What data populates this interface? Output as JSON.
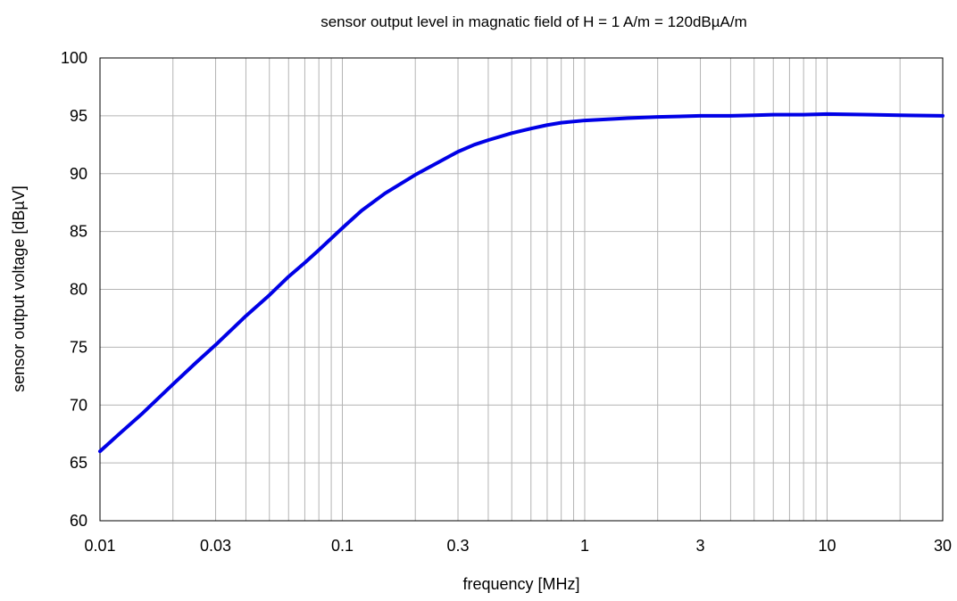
{
  "chart_data": {
    "type": "line",
    "title": "sensor output level in magnatic field of H = 1 A/m = 120dBµA/m",
    "xlabel": "frequency [MHz]",
    "ylabel": "sensor output voltage [dBµV]",
    "xscale": "log",
    "xlim": [
      0.01,
      30
    ],
    "ylim": [
      60,
      100
    ],
    "grid": true,
    "xticks": [
      {
        "value": 0.01,
        "label": "0.01"
      },
      {
        "value": 0.03,
        "label": "0.03"
      },
      {
        "value": 0.1,
        "label": "0.1"
      },
      {
        "value": 0.3,
        "label": "0.3"
      },
      {
        "value": 1,
        "label": "1"
      },
      {
        "value": 3,
        "label": "3"
      },
      {
        "value": 10,
        "label": "10"
      },
      {
        "value": 30,
        "label": "30"
      }
    ],
    "yticks": [
      {
        "value": 60,
        "label": "60"
      },
      {
        "value": 65,
        "label": "65"
      },
      {
        "value": 70,
        "label": "70"
      },
      {
        "value": 75,
        "label": "75"
      },
      {
        "value": 80,
        "label": "80"
      },
      {
        "value": 85,
        "label": "85"
      },
      {
        "value": 90,
        "label": "90"
      },
      {
        "value": 95,
        "label": "95"
      },
      {
        "value": 100,
        "label": "100"
      }
    ],
    "series": [
      {
        "color": "#0000e6",
        "x": [
          0.01,
          0.012,
          0.015,
          0.02,
          0.025,
          0.03,
          0.04,
          0.05,
          0.06,
          0.07,
          0.08,
          0.1,
          0.12,
          0.15,
          0.2,
          0.25,
          0.3,
          0.35,
          0.4,
          0.5,
          0.6,
          0.7,
          0.8,
          1,
          1.5,
          2,
          3,
          4,
          5,
          6,
          7,
          8,
          10,
          15,
          20,
          30
        ],
        "y": [
          66.0,
          67.5,
          69.3,
          71.8,
          73.7,
          75.2,
          77.7,
          79.5,
          81.1,
          82.3,
          83.4,
          85.3,
          86.8,
          88.3,
          89.9,
          91.0,
          91.9,
          92.5,
          92.9,
          93.5,
          93.9,
          94.2,
          94.4,
          94.6,
          94.8,
          94.9,
          95.0,
          95.0,
          95.05,
          95.1,
          95.1,
          95.1,
          95.15,
          95.1,
          95.05,
          95.0
        ]
      }
    ]
  }
}
